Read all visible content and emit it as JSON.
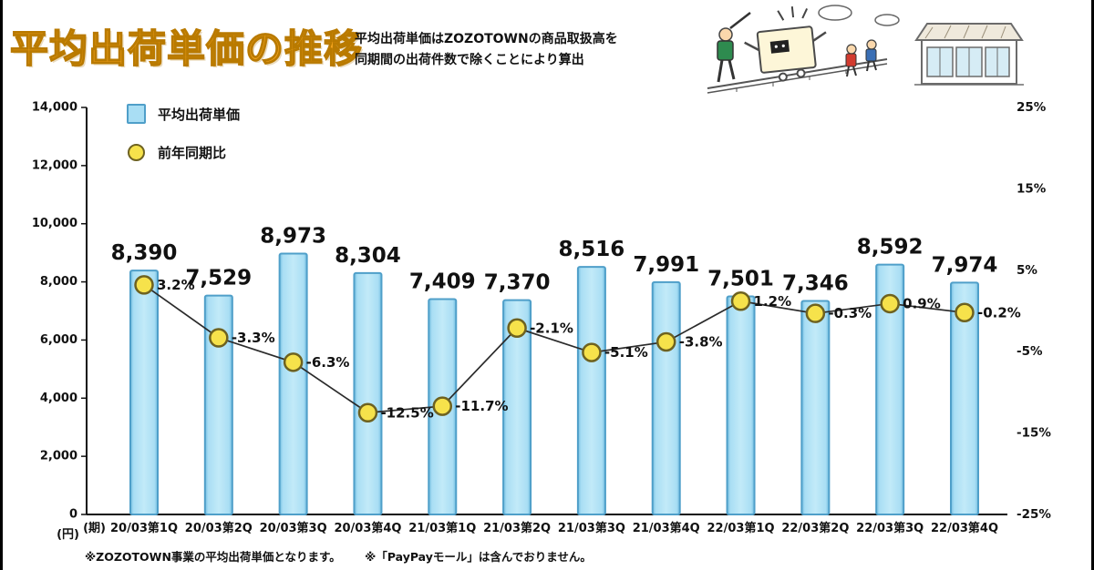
{
  "page": {
    "title": "平均出荷単価の推移",
    "subtitle_line1": "平均出荷単価はZOZOTOWNの商品取扱高を",
    "subtitle_line2": "同期間の出荷件数で除くことにより算出",
    "footnote1": "※ZOZOTOWN事業の平均出荷単価となります。",
    "footnote2": "※「PayPayモール」は含んでおりません。"
  },
  "legend": [
    {
      "label": "平均出荷単価",
      "marker": "bar-swatch",
      "color": "#a9def4"
    },
    {
      "label": "前年同期比",
      "marker": "circle-swatch",
      "color": "#f6e24b"
    }
  ],
  "chart_data": {
    "type": "bar+line",
    "title": "平均出荷単価の推移",
    "categories": [
      "20/03第1Q",
      "20/03第2Q",
      "20/03第3Q",
      "20/03第4Q",
      "21/03第1Q",
      "21/03第2Q",
      "21/03第3Q",
      "21/03第4Q",
      "22/03第1Q",
      "22/03第2Q",
      "22/03第3Q",
      "22/03第4Q"
    ],
    "x_unit": "(期)",
    "left_axis": {
      "unit": "(円)",
      "min": 0,
      "max": 14000,
      "tick_values": [
        0,
        2000,
        4000,
        6000,
        8000,
        10000,
        12000,
        14000
      ],
      "tick_labels": [
        "0",
        "2,000",
        "4,000",
        "6,000",
        "8,000",
        "10,000",
        "12,000",
        "14,000"
      ]
    },
    "right_axis": {
      "min": -25,
      "max": 25,
      "tick_values": [
        25,
        15,
        5,
        -5,
        -15,
        -25
      ],
      "tick_labels": [
        "25%",
        "15%",
        "5%",
        "-5%",
        "-15%",
        "-25%"
      ]
    },
    "series": [
      {
        "name": "平均出荷単価",
        "type": "bar",
        "axis": "left",
        "values": [
          8390,
          7529,
          8973,
          8304,
          7409,
          7370,
          8516,
          7991,
          7501,
          7346,
          8592,
          7974
        ],
        "labels": [
          "8,390",
          "7,529",
          "8,973",
          "8,304",
          "7,409",
          "7,370",
          "8,516",
          "7,991",
          "7,501",
          "7,346",
          "8,592",
          "7,974"
        ]
      },
      {
        "name": "前年同期比",
        "type": "line",
        "axis": "right",
        "values": [
          3.2,
          -3.3,
          -6.3,
          -12.5,
          -11.7,
          -2.1,
          -5.1,
          -3.8,
          1.2,
          -0.3,
          0.9,
          -0.2
        ],
        "labels": [
          "3.2%",
          "-3.3%",
          "-6.3%",
          "-12.5%",
          "-11.7%",
          "-2.1%",
          "-5.1%",
          "-3.8%",
          "1.2%",
          "-0.3%",
          "0.9%",
          "-0.2%"
        ]
      }
    ],
    "colors": {
      "bar_fill": "#a9def4",
      "bar_edge": "#4f9fc9",
      "dot_fill": "#f6e24b",
      "dot_edge": "#6e6220",
      "line": "#2b2b2b"
    },
    "grid": false,
    "legend_position": "top-left-inside"
  }
}
